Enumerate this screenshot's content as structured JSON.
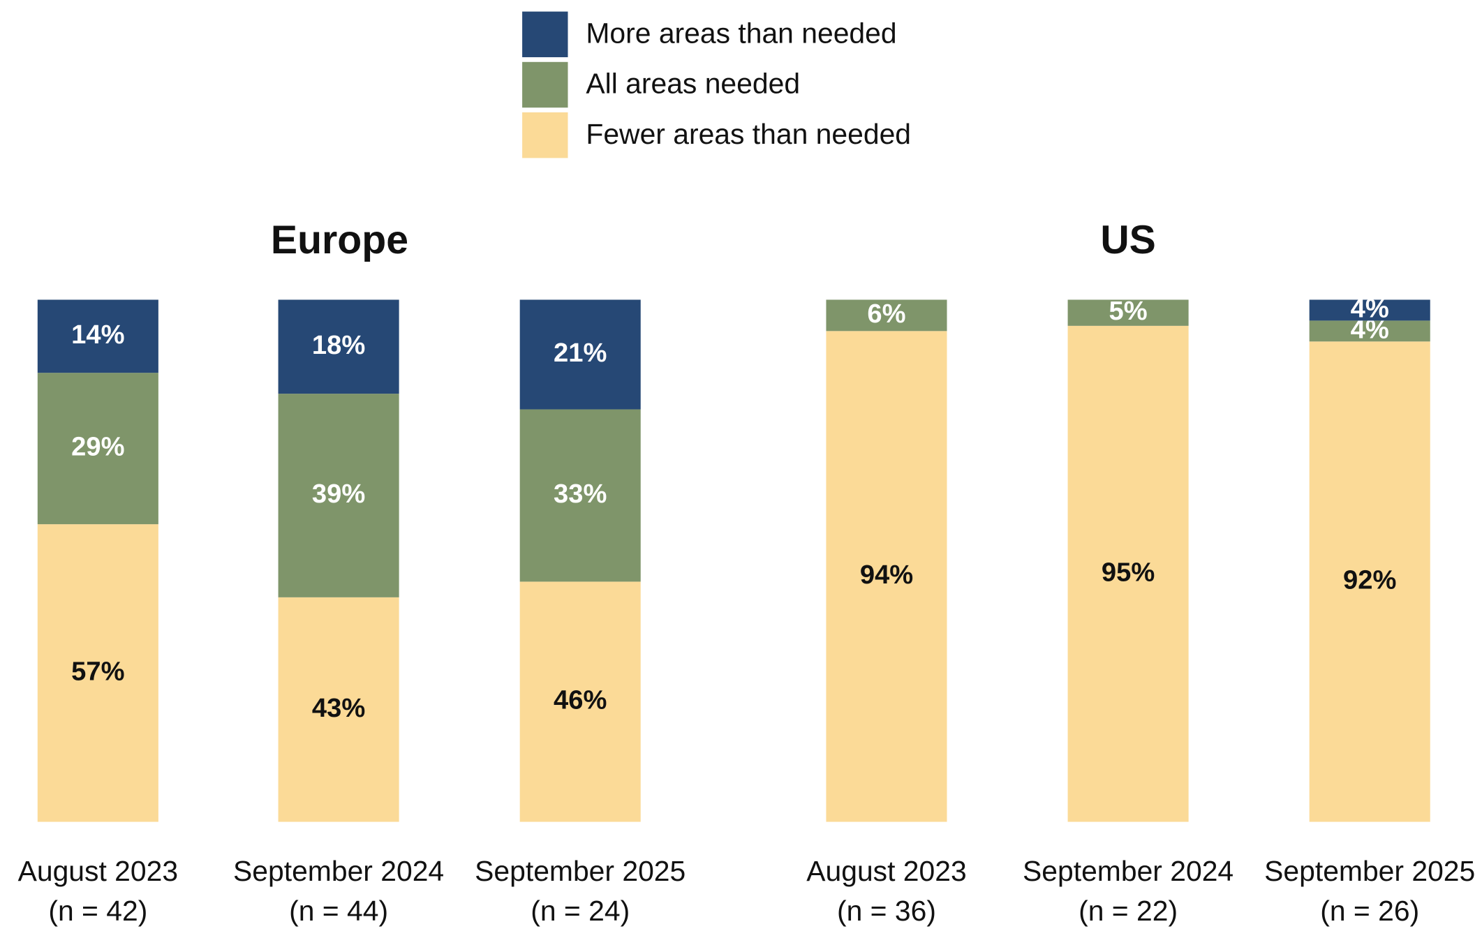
{
  "legend": [
    {
      "name": "More areas than needed",
      "color": "#264875"
    },
    {
      "name": "All areas needed",
      "color": "#7f956a"
    },
    {
      "name": "Fewer areas than needed",
      "color": "#fbda97"
    }
  ],
  "chart_data": [
    {
      "type": "bar",
      "stacked": true,
      "title": "Europe",
      "categories": [
        [
          "August 2023",
          "(n = 42)"
        ],
        [
          "September 2024",
          "(n = 44)"
        ],
        [
          "September 2025",
          "(n = 24)"
        ]
      ],
      "ylim": [
        0,
        100
      ],
      "series": [
        {
          "values": [
            14,
            18,
            21
          ],
          "value_labels": [
            "14%",
            "18%",
            "21%"
          ]
        },
        {
          "values": [
            29,
            39,
            33
          ],
          "value_labels": [
            "29%",
            "39%",
            "33%"
          ]
        },
        {
          "values": [
            57,
            43,
            46
          ],
          "value_labels": [
            "57%",
            "43%",
            "46%"
          ]
        }
      ]
    },
    {
      "type": "bar",
      "stacked": true,
      "title": "US",
      "categories": [
        [
          "August 2023",
          "(n = 36)"
        ],
        [
          "September 2024",
          "(n = 22)"
        ],
        [
          "September 2025",
          "(n = 26)"
        ]
      ],
      "ylim": [
        0,
        100
      ],
      "series": [
        {
          "values": [
            null,
            null,
            4
          ],
          "value_labels": [
            null,
            null,
            "4%"
          ]
        },
        {
          "values": [
            6,
            5,
            4
          ],
          "value_labels": [
            "6%",
            "5%",
            "4%"
          ]
        },
        {
          "values": [
            94,
            95,
            92
          ],
          "value_labels": [
            "94%",
            "95%",
            "92%"
          ]
        }
      ]
    }
  ]
}
